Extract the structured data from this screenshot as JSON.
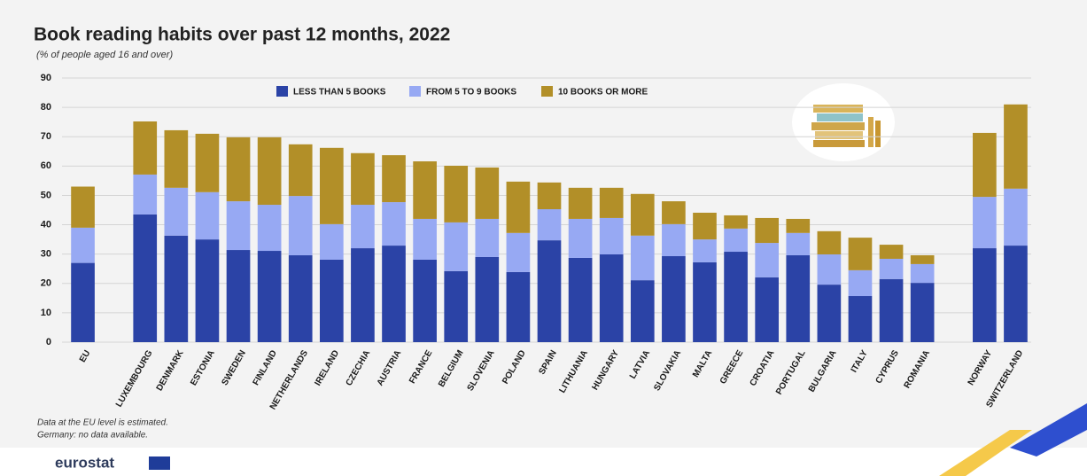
{
  "chart_data": {
    "type": "stacked_bar",
    "title": "Book reading habits over past 12 months, 2022",
    "subtitle": "(% of people aged 16 and over)",
    "categories": [
      "EU",
      null,
      "LUXEMBOURG",
      "DENMARK",
      "ESTONIA",
      "SWEDEN",
      "FINLAND",
      "NETHERLANDS",
      "IRELAND",
      "CZECHIA",
      "AUSTRIA",
      "FRANCE",
      "BELGIUM",
      "SLOVENIA",
      "POLAND",
      "SPAIN",
      "LITHUANIA",
      "HUNGARY",
      "LATVIA",
      "SLOVAKIA",
      "MALTA",
      "GREECE",
      "CROATIA",
      "PORTUGAL",
      "BULGARIA",
      "ITALY",
      "CYPRUS",
      "ROMANIA",
      null,
      "NORWAY",
      "SWITZERLAND"
    ],
    "series": [
      {
        "name": "LESS THAN 5 BOOKS",
        "color": "#2b43a6",
        "values": [
          27,
          null,
          43.5,
          36.3,
          35.0,
          31.4,
          31.1,
          29.6,
          28.1,
          32.0,
          32.9,
          28.1,
          24.2,
          29.0,
          23.9,
          34.7,
          28.7,
          29.9,
          21.1,
          29.3,
          27.2,
          30.8,
          22.1,
          29.6,
          19.6,
          15.7,
          21.5,
          20.2,
          null,
          32.0,
          32.9
        ]
      },
      {
        "name": "FROM 5 TO 9 BOOKS",
        "color": "#97a9f3",
        "values": [
          12,
          null,
          13.6,
          16.3,
          16.1,
          16.6,
          15.7,
          20.2,
          12.1,
          14.8,
          14.8,
          13.9,
          16.6,
          13.0,
          13.3,
          10.6,
          13.3,
          12.4,
          15.2,
          10.9,
          7.8,
          7.9,
          11.7,
          7.6,
          10.3,
          8.8,
          6.9,
          6.4,
          null,
          17.5,
          19.4
        ]
      },
      {
        "name": "10 BOOKS OR MORE",
        "color": "#b28f28",
        "values": [
          14,
          null,
          18.1,
          19.6,
          19.9,
          21.8,
          23.0,
          17.6,
          26.0,
          17.6,
          16.0,
          19.6,
          19.3,
          17.5,
          17.5,
          9.1,
          10.6,
          10.3,
          14.2,
          7.8,
          9.1,
          4.5,
          8.5,
          4.8,
          7.9,
          11.1,
          4.8,
          3.0,
          null,
          21.8,
          28.7
        ]
      }
    ],
    "ylim": [
      0,
      90
    ],
    "yticks": [
      0,
      10,
      20,
      30,
      40,
      50,
      60,
      70,
      80,
      90
    ],
    "grid": true
  },
  "notes": [
    "Data at the EU level is estimated.",
    "Germany: no data available."
  ],
  "logo": "eurostat"
}
